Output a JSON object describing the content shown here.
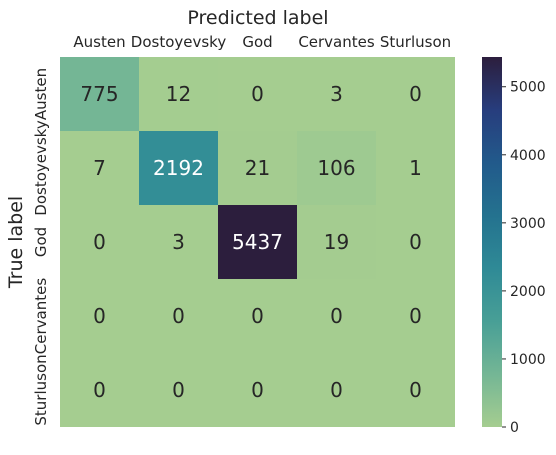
{
  "chart_data": {
    "type": "heatmap",
    "title": "",
    "xlabel": "Predicted label",
    "ylabel": "True label",
    "x_categories": [
      "Austen",
      "Dostoyevsky",
      "God",
      "Cervantes",
      "Sturluson"
    ],
    "y_categories": [
      "Austen",
      "Dostoyevsky",
      "God",
      "Cervantes",
      "Sturluson"
    ],
    "values": [
      [
        775,
        12,
        0,
        3,
        0
      ],
      [
        7,
        2192,
        21,
        106,
        1
      ],
      [
        0,
        3,
        5437,
        19,
        0
      ],
      [
        0,
        0,
        0,
        0,
        0
      ],
      [
        0,
        0,
        0,
        0,
        0
      ]
    ],
    "colorbar": {
      "min": 0,
      "max": 5437,
      "ticks": [
        0,
        1000,
        2000,
        3000,
        4000,
        5000
      ],
      "colormap": "crest",
      "stops": [
        "#a5cd90",
        "#74b695",
        "#489f96",
        "#2f8a96",
        "#24728f",
        "#225a8b",
        "#273d7d",
        "#2c1e3d"
      ]
    },
    "grid": false,
    "x_axis_position": "top"
  }
}
